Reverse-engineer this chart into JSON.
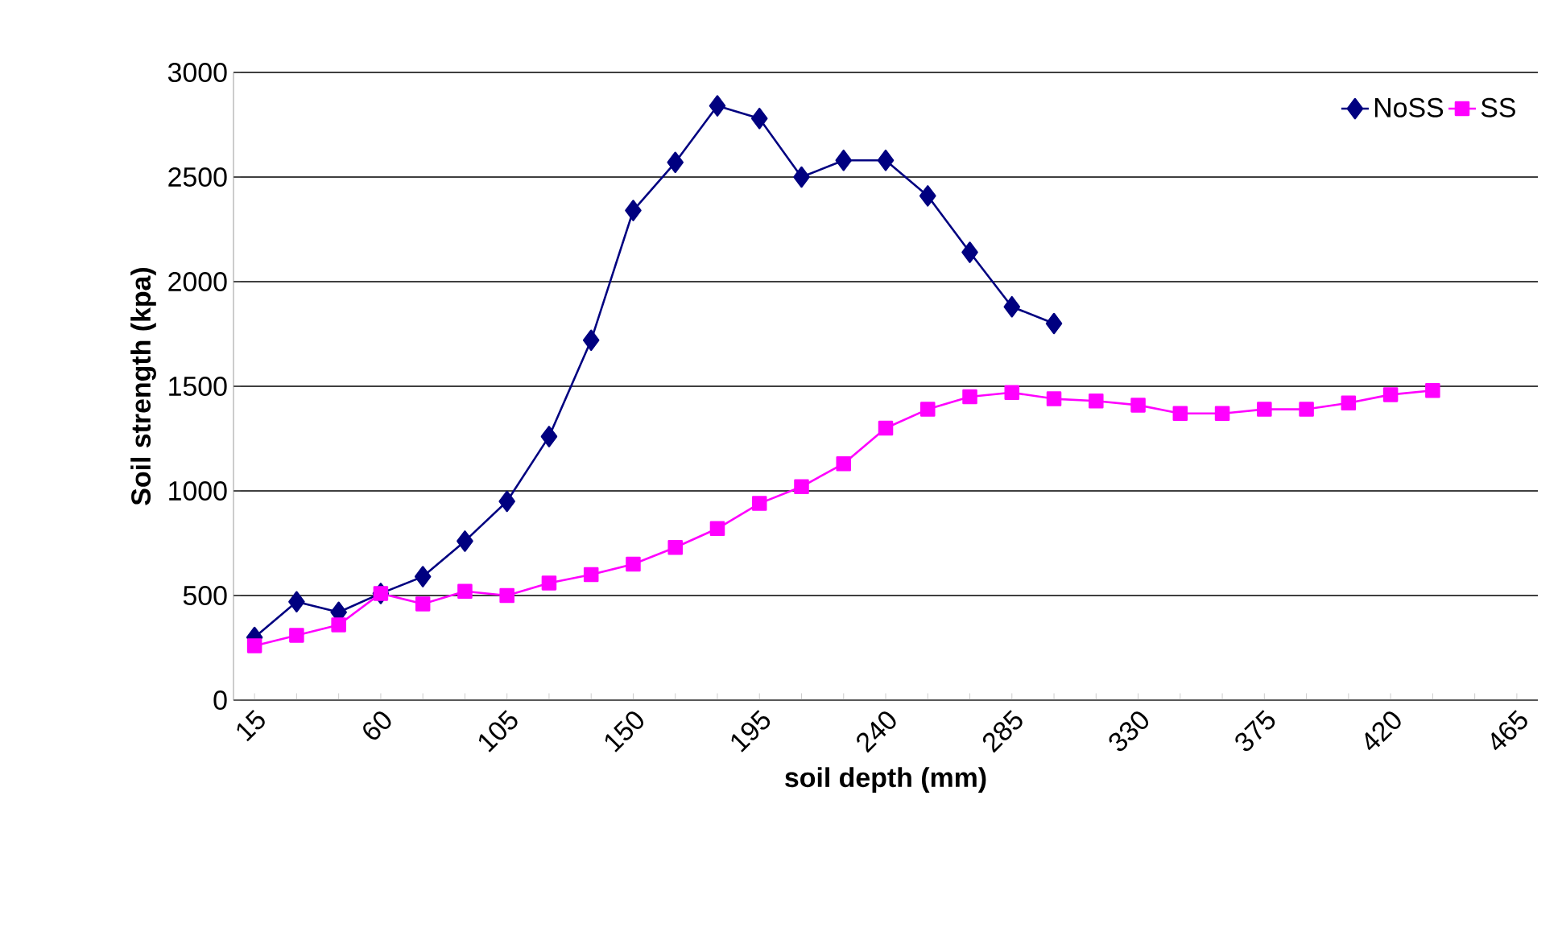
{
  "chart_data": {
    "type": "line",
    "xlabel": "soil depth (mm)",
    "ylabel": "Soil strength (kpa)",
    "categories": [
      "15",
      null,
      null,
      "60",
      null,
      null,
      "105",
      null,
      null,
      "150",
      null,
      null,
      "195",
      null,
      null,
      "240",
      null,
      null,
      "285",
      null,
      null,
      "330",
      null,
      null,
      "375",
      null,
      null,
      "420",
      null,
      null,
      "465"
    ],
    "series": [
      {
        "name": "NoSS",
        "color": "#000080",
        "marker": "diamond",
        "values": [
          300,
          470,
          420,
          510,
          590,
          760,
          950,
          1260,
          1720,
          2340,
          2570,
          2840,
          2780,
          2500,
          2580,
          2580,
          2410,
          2140,
          1880,
          1800,
          null,
          null,
          null,
          null,
          null,
          null,
          null,
          null,
          null,
          null,
          null
        ]
      },
      {
        "name": "SS",
        "color": "#ff00ff",
        "marker": "square",
        "values": [
          260,
          310,
          360,
          510,
          460,
          520,
          500,
          560,
          600,
          650,
          730,
          820,
          940,
          1020,
          1130,
          1300,
          1390,
          1450,
          1470,
          1440,
          1430,
          1410,
          1370,
          1370,
          1390,
          1390,
          1420,
          1460,
          1480,
          null,
          null
        ]
      }
    ],
    "ylim": [
      0,
      3000
    ],
    "yticks": [
      0,
      500,
      1000,
      1500,
      2000,
      2500,
      3000
    ],
    "grid": "y",
    "legend": "top right",
    "line_style": "solid"
  }
}
